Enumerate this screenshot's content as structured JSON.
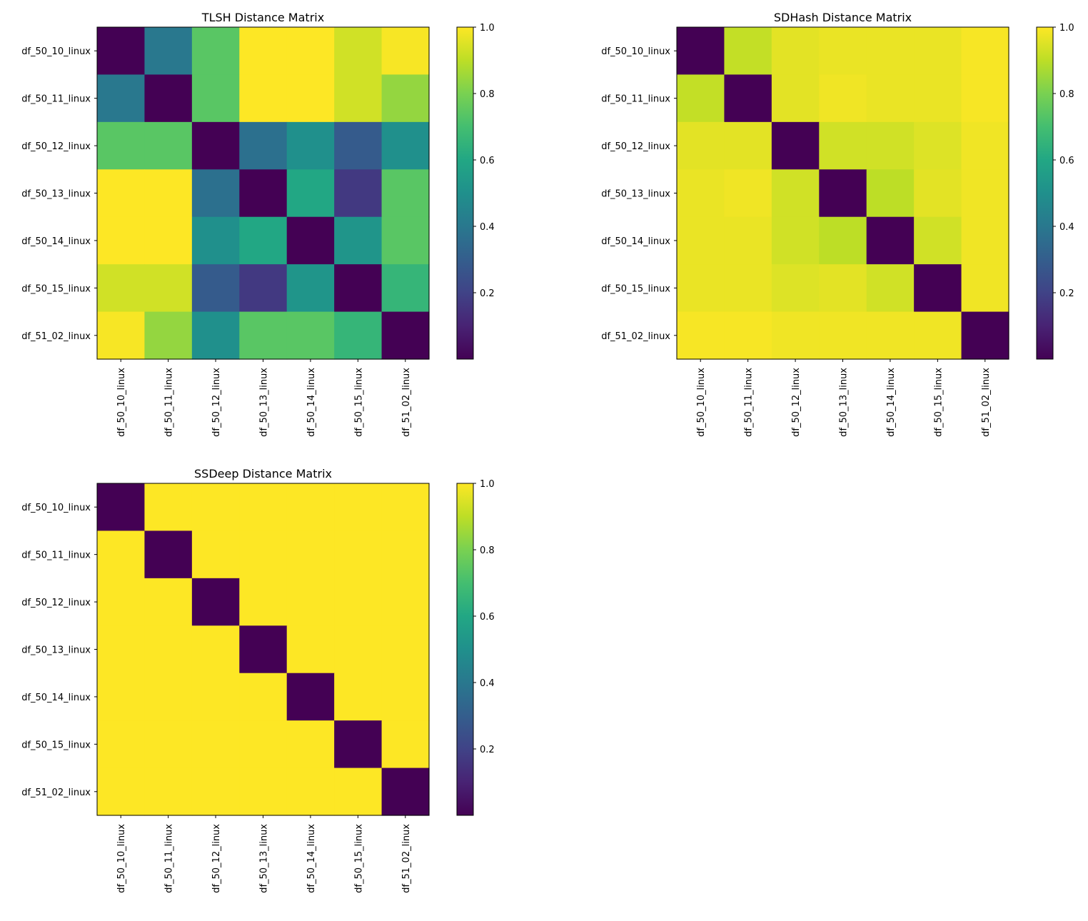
{
  "chart_data": [
    {
      "type": "heatmap",
      "title": "TLSH Distance Matrix",
      "labels": [
        "df_50_10_linux",
        "df_50_11_linux",
        "df_50_12_linux",
        "df_50_13_linux",
        "df_50_14_linux",
        "df_50_15_linux",
        "df_51_02_linux"
      ],
      "matrix": [
        [
          0.0,
          0.4,
          0.74,
          1.0,
          1.0,
          0.93,
          0.99
        ],
        [
          0.4,
          0.0,
          0.74,
          1.0,
          1.0,
          0.93,
          0.84
        ],
        [
          0.74,
          0.74,
          0.0,
          0.37,
          0.5,
          0.29,
          0.5
        ],
        [
          1.0,
          1.0,
          0.37,
          0.0,
          0.6,
          0.17,
          0.74
        ],
        [
          1.0,
          1.0,
          0.5,
          0.6,
          0.0,
          0.52,
          0.74
        ],
        [
          0.93,
          0.93,
          0.29,
          0.17,
          0.52,
          0.0,
          0.66
        ],
        [
          0.99,
          0.84,
          0.5,
          0.74,
          0.74,
          0.66,
          0.0
        ]
      ],
      "colormap": "viridis",
      "vmin": 0,
      "vmax": 1,
      "colorbar_ticks": [
        "0.2",
        "0.4",
        "0.6",
        "0.8",
        "1.0"
      ],
      "colorbar_tick_values": [
        0.2,
        0.4,
        0.6,
        0.8,
        1.0
      ]
    },
    {
      "type": "heatmap",
      "title": "SDHash Distance Matrix",
      "labels": [
        "df_50_10_linux",
        "df_50_11_linux",
        "df_50_12_linux",
        "df_50_13_linux",
        "df_50_14_linux",
        "df_50_15_linux",
        "df_51_02_linux"
      ],
      "matrix": [
        [
          0.0,
          0.91,
          0.96,
          0.97,
          0.97,
          0.97,
          0.99
        ],
        [
          0.91,
          0.0,
          0.96,
          0.98,
          0.97,
          0.97,
          0.99
        ],
        [
          0.96,
          0.96,
          0.0,
          0.93,
          0.93,
          0.95,
          0.98
        ],
        [
          0.97,
          0.98,
          0.93,
          0.0,
          0.9,
          0.96,
          0.98
        ],
        [
          0.97,
          0.97,
          0.93,
          0.9,
          0.0,
          0.93,
          0.98
        ],
        [
          0.97,
          0.97,
          0.95,
          0.96,
          0.93,
          0.0,
          0.98
        ],
        [
          0.99,
          0.99,
          0.98,
          0.98,
          0.98,
          0.98,
          0.0
        ]
      ],
      "colormap": "viridis",
      "vmin": 0,
      "vmax": 1,
      "colorbar_ticks": [
        "0.2",
        "0.4",
        "0.6",
        "0.8",
        "1.0"
      ],
      "colorbar_tick_values": [
        0.2,
        0.4,
        0.6,
        0.8,
        1.0
      ]
    },
    {
      "type": "heatmap",
      "title": "SSDeep Distance Matrix",
      "labels": [
        "df_50_10_linux",
        "df_50_11_linux",
        "df_50_12_linux",
        "df_50_13_linux",
        "df_50_14_linux",
        "df_50_15_linux",
        "df_51_02_linux"
      ],
      "matrix": [
        [
          0,
          1,
          1,
          1,
          1,
          1,
          1
        ],
        [
          1,
          0,
          1,
          1,
          1,
          1,
          1
        ],
        [
          1,
          1,
          0,
          1,
          1,
          1,
          1
        ],
        [
          1,
          1,
          1,
          0,
          1,
          1,
          1
        ],
        [
          1,
          1,
          1,
          1,
          0,
          1,
          1
        ],
        [
          1,
          1,
          1,
          1,
          1,
          0,
          1
        ],
        [
          1,
          1,
          1,
          1,
          1,
          1,
          0
        ]
      ],
      "colormap": "viridis",
      "vmin": 0,
      "vmax": 1,
      "colorbar_ticks": [
        "0.2",
        "0.4",
        "0.6",
        "0.8",
        "1.0"
      ],
      "colorbar_tick_values": [
        0.2,
        0.4,
        0.6,
        0.8,
        1.0
      ]
    }
  ]
}
